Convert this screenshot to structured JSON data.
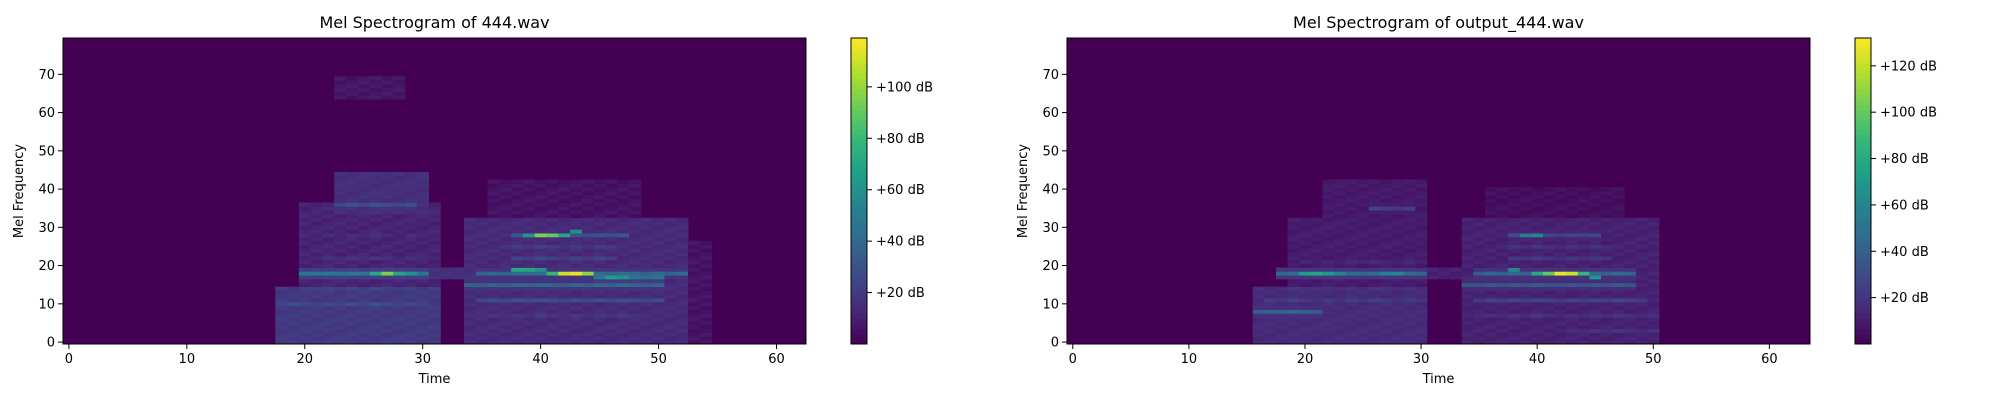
{
  "colormap": "viridis",
  "chart_data": [
    {
      "type": "heatmap",
      "title": "Mel Spectrogram of 444.wav",
      "xlabel": "Time",
      "ylabel": "Mel Frequency",
      "xlim": [
        -0.5,
        62.5
      ],
      "ylim": [
        -0.5,
        79.5
      ],
      "xticks": [
        0,
        10,
        20,
        30,
        40,
        50,
        60
      ],
      "yticks": [
        0,
        10,
        20,
        30,
        40,
        50,
        60,
        70
      ],
      "grid": false,
      "colorbar": {
        "vmin": 0,
        "vmax": 119,
        "ticks": [
          20,
          40,
          60,
          80,
          100
        ],
        "tick_labels": [
          "+20 dB",
          "+40 dB",
          "+60 dB",
          "+80 dB",
          "+100 dB"
        ]
      },
      "background_level_db": 0,
      "regions": [
        {
          "t": [
            18,
            31
          ],
          "mel": [
            0,
            14
          ],
          "db": 20
        },
        {
          "t": [
            20,
            31
          ],
          "mel": [
            14,
            36
          ],
          "db": 12
        },
        {
          "t": [
            23,
            30
          ],
          "mel": [
            34,
            44
          ],
          "db": 16
        },
        {
          "t": [
            23,
            28
          ],
          "mel": [
            64,
            69
          ],
          "db": 7
        },
        {
          "t": [
            31,
            35
          ],
          "mel": [
            17,
            19
          ],
          "db": 16
        },
        {
          "t": [
            34,
            52
          ],
          "mel": [
            0,
            32
          ],
          "db": 14
        },
        {
          "t": [
            36,
            48
          ],
          "mel": [
            32,
            42
          ],
          "db": 6
        },
        {
          "t": [
            52,
            54
          ],
          "mel": [
            0,
            26
          ],
          "db": 6
        }
      ],
      "bands": [
        {
          "t": [
            20,
            30
          ],
          "mel": 18,
          "db": 48
        },
        {
          "t": [
            18,
            30
          ],
          "mel": 10,
          "db": 26
        },
        {
          "t": [
            20,
            30
          ],
          "mel": 14,
          "db": 22
        },
        {
          "t": [
            20,
            30
          ],
          "mel": 6,
          "db": 16
        },
        {
          "t": [
            21,
            30
          ],
          "mel": 22,
          "db": 16
        },
        {
          "t": [
            21,
            30
          ],
          "mel": 28,
          "db": 14
        },
        {
          "t": [
            23,
            29
          ],
          "mel": 36,
          "db": 28
        },
        {
          "t": [
            34,
            50
          ],
          "mel": 15,
          "db": 38
        },
        {
          "t": [
            35,
            50
          ],
          "mel": 11,
          "db": 28
        },
        {
          "t": [
            35,
            49
          ],
          "mel": 7,
          "db": 18
        },
        {
          "t": [
            35,
            52
          ],
          "mel": 18,
          "db": 40
        },
        {
          "t": [
            38,
            46
          ],
          "mel": 22,
          "db": 22
        },
        {
          "t": [
            37,
            46
          ],
          "mel": 25,
          "db": 20
        },
        {
          "t": [
            38,
            47
          ],
          "mel": 28,
          "db": 30
        },
        {
          "t": [
            45,
            50
          ],
          "mel": 17,
          "db": 45
        }
      ],
      "peaks": [
        {
          "t": 27,
          "mel": 18,
          "db": 95
        },
        {
          "t": 26,
          "mel": 18,
          "db": 72
        },
        {
          "t": 28,
          "mel": 18,
          "db": 70
        },
        {
          "t": 29,
          "mel": 18,
          "db": 60
        },
        {
          "t": 40,
          "mel": 28,
          "db": 95
        },
        {
          "t": 41,
          "mel": 28,
          "db": 90
        },
        {
          "t": 42,
          "mel": 28,
          "db": 70
        },
        {
          "t": 39,
          "mel": 28,
          "db": 62
        },
        {
          "t": 42,
          "mel": 18,
          "db": 110
        },
        {
          "t": 43,
          "mel": 18,
          "db": 115
        },
        {
          "t": 44,
          "mel": 18,
          "db": 98
        },
        {
          "t": 41,
          "mel": 18,
          "db": 78
        },
        {
          "t": 38,
          "mel": 19,
          "db": 72
        },
        {
          "t": 39,
          "mel": 19,
          "db": 70
        },
        {
          "t": 40,
          "mel": 19,
          "db": 62
        },
        {
          "t": 46,
          "mel": 17,
          "db": 65
        },
        {
          "t": 47,
          "mel": 17,
          "db": 60
        },
        {
          "t": 43,
          "mel": 29,
          "db": 60
        }
      ]
    },
    {
      "type": "heatmap",
      "title": "Mel Spectrogram of output_444.wav",
      "xlabel": "Time",
      "ylabel": "Mel Frequency",
      "xlim": [
        -0.5,
        63.5
      ],
      "ylim": [
        -0.5,
        79.5
      ],
      "xticks": [
        0,
        10,
        20,
        30,
        40,
        50,
        60
      ],
      "yticks": [
        0,
        10,
        20,
        30,
        40,
        50,
        60,
        70
      ],
      "grid": false,
      "colorbar": {
        "vmin": 0,
        "vmax": 132,
        "ticks": [
          20,
          40,
          60,
          80,
          100,
          120
        ],
        "tick_labels": [
          "+20 dB",
          "+40 dB",
          "+60 dB",
          "+80 dB",
          "+100 dB",
          "+120 dB"
        ]
      },
      "background_level_db": 0,
      "regions": [
        {
          "t": [
            16,
            30
          ],
          "mel": [
            0,
            14
          ],
          "db": 16
        },
        {
          "t": [
            19,
            30
          ],
          "mel": [
            14,
            32
          ],
          "db": 10
        },
        {
          "t": [
            22,
            30
          ],
          "mel": [
            32,
            42
          ],
          "db": 9
        },
        {
          "t": [
            30,
            34
          ],
          "mel": [
            17,
            19
          ],
          "db": 12
        },
        {
          "t": [
            34,
            50
          ],
          "mel": [
            0,
            32
          ],
          "db": 12
        },
        {
          "t": [
            36,
            47
          ],
          "mel": [
            32,
            40
          ],
          "db": 5
        }
      ],
      "bands": [
        {
          "t": [
            18,
            30
          ],
          "mel": 18,
          "db": 45
        },
        {
          "t": [
            16,
            21
          ],
          "mel": 8,
          "db": 40
        },
        {
          "t": [
            17,
            30
          ],
          "mel": 11,
          "db": 22
        },
        {
          "t": [
            19,
            30
          ],
          "mel": 14,
          "db": 18
        },
        {
          "t": [
            20,
            30
          ],
          "mel": 21,
          "db": 14
        },
        {
          "t": [
            26,
            29
          ],
          "mel": 35,
          "db": 24
        },
        {
          "t": [
            34,
            48
          ],
          "mel": 15,
          "db": 35
        },
        {
          "t": [
            35,
            49
          ],
          "mel": 11,
          "db": 26
        },
        {
          "t": [
            35,
            50
          ],
          "mel": 7,
          "db": 18
        },
        {
          "t": [
            35,
            48
          ],
          "mel": 18,
          "db": 42
        },
        {
          "t": [
            38,
            46
          ],
          "mel": 22,
          "db": 20
        },
        {
          "t": [
            38,
            46
          ],
          "mel": 25,
          "db": 18
        },
        {
          "t": [
            38,
            45
          ],
          "mel": 28,
          "db": 28
        },
        {
          "t": [
            43,
            50
          ],
          "mel": 3,
          "db": 18
        }
      ],
      "peaks": [
        {
          "t": 20,
          "mel": 18,
          "db": 72
        },
        {
          "t": 21,
          "mel": 18,
          "db": 78
        },
        {
          "t": 22,
          "mel": 18,
          "db": 72
        },
        {
          "t": 23,
          "mel": 18,
          "db": 60
        },
        {
          "t": 27,
          "mel": 18,
          "db": 58
        },
        {
          "t": 28,
          "mel": 18,
          "db": 62
        },
        {
          "t": 40,
          "mel": 28,
          "db": 62
        },
        {
          "t": 39,
          "mel": 28,
          "db": 55
        },
        {
          "t": 41,
          "mel": 18,
          "db": 100
        },
        {
          "t": 42,
          "mel": 18,
          "db": 128
        },
        {
          "t": 43,
          "mel": 18,
          "db": 122
        },
        {
          "t": 40,
          "mel": 18,
          "db": 80
        },
        {
          "t": 44,
          "mel": 18,
          "db": 86
        },
        {
          "t": 45,
          "mel": 17,
          "db": 68
        },
        {
          "t": 38,
          "mel": 19,
          "db": 62
        },
        {
          "t": 18,
          "mel": 8,
          "db": 42
        }
      ]
    }
  ]
}
